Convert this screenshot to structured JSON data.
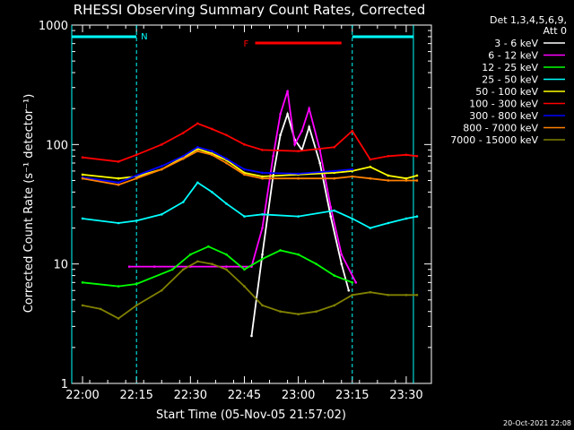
{
  "footer_timestamp": "20-Oct-2021 22:08",
  "chart_data": {
    "type": "line",
    "title": "RHESSI Observing Summary Count Rates, Corrected",
    "xlabel": "Start Time (05-Nov-05 21:57:02)",
    "ylabel": "Corrected Count Rate (s⁻¹ detector⁻¹)",
    "y_scale": "log",
    "ylim": [
      1,
      1000
    ],
    "y_ticks": [
      1,
      10,
      100,
      1000
    ],
    "y_tick_labels": [
      "1",
      "10",
      "100",
      "1000"
    ],
    "xlim": [
      "21:57",
      "23:37"
    ],
    "x_ticks": [
      "22:00",
      "22:15",
      "22:30",
      "22:45",
      "23:00",
      "23:15",
      "23:30"
    ],
    "legend": {
      "placement": "right",
      "header_line1": "Det 1,3,4,5,6,9,",
      "header_line2": "Att 0"
    },
    "annotations": {
      "night_marker": "N",
      "flare_marker": "F",
      "night_intervals": [
        [
          "21:57",
          "22:15"
        ],
        [
          "23:15",
          "23:32"
        ]
      ],
      "flare_interval": [
        "22:48",
        "23:12"
      ]
    },
    "colors": {
      "night": "#00ffff",
      "flare": "#ff0000",
      "axes": "#ffffff"
    },
    "series": [
      {
        "name": "3 - 6 keV",
        "color": "#ffffff",
        "x": [
          "22:47",
          "22:50",
          "22:53",
          "22:55",
          "22:57",
          "22:59",
          "23:01",
          "23:03",
          "23:06",
          "23:09",
          "23:12",
          "23:14"
        ],
        "y": [
          2.5,
          12,
          55,
          120,
          180,
          110,
          90,
          140,
          70,
          25,
          10,
          6
        ]
      },
      {
        "name": "6 - 12 keV",
        "color": "#ff00ff",
        "x": [
          "22:13",
          "22:20",
          "22:30",
          "22:40",
          "22:47",
          "22:50",
          "22:53",
          "22:55",
          "22:57",
          "22:59",
          "23:01",
          "23:03",
          "23:06",
          "23:09",
          "23:12",
          "23:16"
        ],
        "y": [
          9.5,
          9.5,
          9.5,
          9.5,
          9.5,
          20,
          80,
          180,
          280,
          100,
          130,
          200,
          90,
          30,
          12,
          7
        ]
      },
      {
        "name": "12 - 25 keV",
        "color": "#00ff00",
        "x": [
          "22:00",
          "22:10",
          "22:15",
          "22:25",
          "22:30",
          "22:35",
          "22:40",
          "22:45",
          "22:50",
          "22:55",
          "23:00",
          "23:05",
          "23:10",
          "23:15"
        ],
        "y": [
          7,
          6.5,
          6.8,
          9,
          12,
          14,
          12,
          9,
          11,
          13,
          12,
          10,
          8,
          7
        ]
      },
      {
        "name": "25 - 50 keV",
        "color": "#00ffff",
        "x": [
          "22:00",
          "22:10",
          "22:15",
          "22:22",
          "22:28",
          "22:32",
          "22:36",
          "22:40",
          "22:45",
          "22:50",
          "23:00",
          "23:10",
          "23:15",
          "23:20",
          "23:25",
          "23:30",
          "23:33"
        ],
        "y": [
          24,
          22,
          23,
          26,
          33,
          48,
          40,
          32,
          25,
          26,
          25,
          28,
          24,
          20,
          22,
          24,
          25
        ]
      },
      {
        "name": "50 - 100 keV",
        "color": "#ffff00",
        "x": [
          "22:00",
          "22:10",
          "22:15",
          "22:22",
          "22:28",
          "22:32",
          "22:36",
          "22:40",
          "22:45",
          "22:50",
          "23:00",
          "23:10",
          "23:15",
          "23:20",
          "23:25",
          "23:30",
          "23:33"
        ],
        "y": [
          56,
          52,
          54,
          62,
          78,
          92,
          84,
          74,
          58,
          54,
          56,
          58,
          60,
          65,
          55,
          52,
          55
        ]
      },
      {
        "name": "100 - 300 keV",
        "color": "#ff0000",
        "x": [
          "22:00",
          "22:10",
          "22:15",
          "22:22",
          "22:28",
          "22:32",
          "22:36",
          "22:40",
          "22:45",
          "22:50",
          "23:00",
          "23:10",
          "23:15",
          "23:20",
          "23:25",
          "23:30",
          "23:33"
        ],
        "y": [
          78,
          72,
          82,
          100,
          125,
          150,
          135,
          120,
          100,
          90,
          88,
          95,
          130,
          75,
          80,
          82,
          80
        ]
      },
      {
        "name": "300 - 800 keV",
        "color": "#0000ff",
        "x": [
          "22:00",
          "22:10",
          "22:15",
          "22:22",
          "22:28",
          "22:32",
          "22:36",
          "22:40",
          "22:45",
          "22:50",
          "23:00",
          "23:10",
          "23:15"
        ],
        "y": [
          53,
          48,
          55,
          66,
          80,
          95,
          88,
          76,
          62,
          58,
          57,
          60,
          62
        ]
      },
      {
        "name": "800 - 7000 keV",
        "color": "#ff8000",
        "x": [
          "22:00",
          "22:10",
          "22:15",
          "22:22",
          "22:28",
          "22:32",
          "22:36",
          "22:40",
          "22:45",
          "22:50",
          "23:00",
          "23:10",
          "23:15",
          "23:20",
          "23:25",
          "23:30",
          "23:33"
        ],
        "y": [
          52,
          46,
          52,
          62,
          76,
          88,
          82,
          70,
          56,
          52,
          52,
          52,
          54,
          52,
          50,
          50,
          50
        ]
      },
      {
        "name": "7000 - 15000 keV",
        "color": "#808000",
        "x": [
          "22:00",
          "22:05",
          "22:10",
          "22:15",
          "22:22",
          "22:28",
          "22:32",
          "22:36",
          "22:40",
          "22:45",
          "22:50",
          "22:55",
          "23:00",
          "23:05",
          "23:10",
          "23:15",
          "23:20",
          "23:25",
          "23:30",
          "23:33"
        ],
        "y": [
          4.5,
          4.2,
          3.5,
          4.5,
          6,
          9,
          10.5,
          10,
          9,
          6.5,
          4.5,
          4,
          3.8,
          4,
          4.5,
          5.5,
          5.8,
          5.5,
          5.5,
          5.5
        ]
      }
    ]
  }
}
